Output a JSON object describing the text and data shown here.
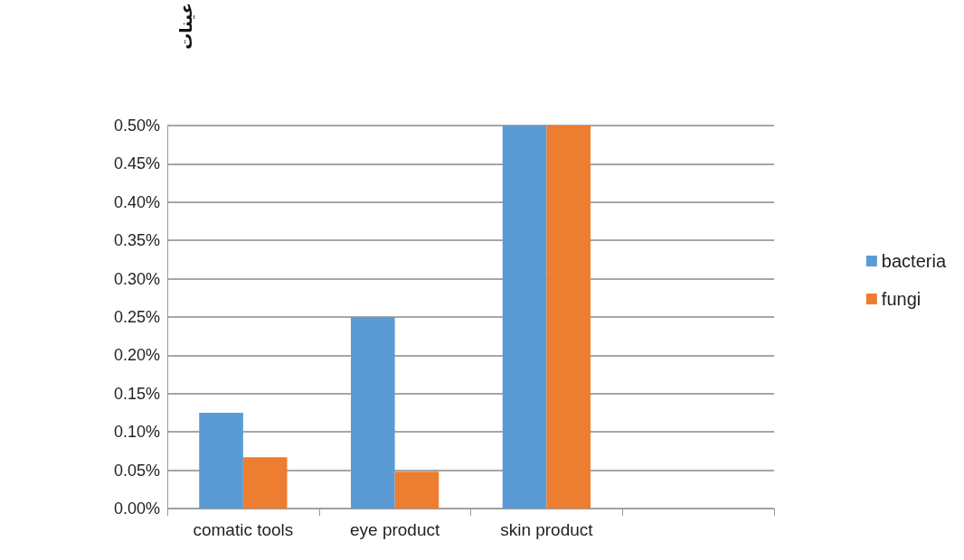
{
  "chart_data": {
    "type": "bar",
    "ylabel": "عينات",
    "categories": [
      "comatic tools",
      "eye product",
      "skin product",
      null
    ],
    "series": [
      {
        "name": "bacteria",
        "color": "#5b9bd5",
        "values": [
          0.125,
          0.25,
          0.5,
          null
        ]
      },
      {
        "name": "fungi",
        "color": "#ed7d31",
        "values": [
          0.067,
          0.048,
          0.5,
          null
        ]
      }
    ],
    "ylim": [
      0,
      0.5
    ],
    "yticks": [
      {
        "value": 0,
        "label": "0.00%"
      },
      {
        "value": 0.05,
        "label": "0.05%"
      },
      {
        "value": 0.1,
        "label": "0.10%"
      },
      {
        "value": 0.15,
        "label": "0.15%"
      },
      {
        "value": 0.2,
        "label": "0.20%"
      },
      {
        "value": 0.25,
        "label": "0.25%"
      },
      {
        "value": 0.3,
        "label": "0.30%"
      },
      {
        "value": 0.35,
        "label": "0.35%"
      },
      {
        "value": 0.4,
        "label": "0.40%"
      },
      {
        "value": 0.45,
        "label": "0.45%"
      },
      {
        "value": 0.5,
        "label": "0.50%"
      }
    ],
    "grid": "y",
    "legend": "right"
  }
}
